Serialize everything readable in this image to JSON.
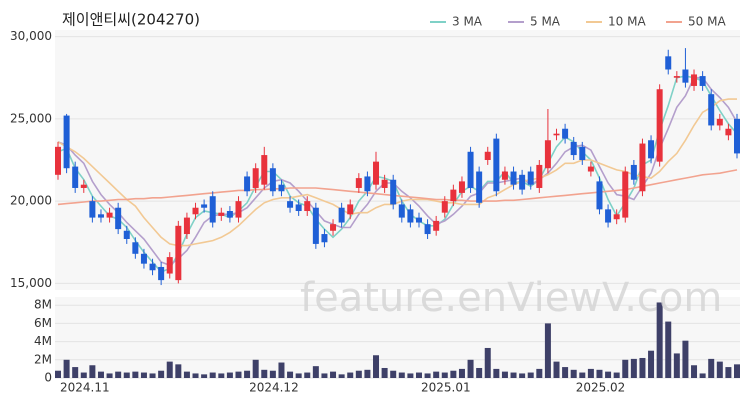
{
  "chart_data": [
    {
      "type": "candlestick",
      "title": "제이앤티씨(204270)",
      "watermark": "feature.enViewV.com",
      "categories": [
        "2024.11",
        null,
        null,
        null,
        null,
        null,
        null,
        null,
        null,
        null,
        null,
        null,
        null,
        null,
        null,
        null,
        null,
        null,
        null,
        null,
        null,
        null,
        "2024.12",
        null,
        null,
        null,
        null,
        null,
        null,
        null,
        null,
        null,
        null,
        null,
        null,
        null,
        null,
        null,
        null,
        null,
        null,
        null,
        "2025.01",
        null,
        null,
        null,
        null,
        null,
        null,
        null,
        null,
        null,
        null,
        null,
        null,
        null,
        null,
        null,
        null,
        null,
        "2025.02",
        null,
        null,
        null,
        null,
        null,
        null,
        null,
        null,
        null,
        null,
        null,
        null,
        null,
        null,
        null,
        null,
        null,
        null,
        null
      ],
      "open": [
        21600,
        25200,
        22100,
        20800,
        20000,
        19200,
        19000,
        19600,
        18200,
        17500,
        16800,
        16200,
        16000,
        15600,
        15200,
        18000,
        19200,
        19800,
        20300,
        19100,
        19400,
        19000,
        21500,
        20800,
        21000,
        22000,
        21000,
        20000,
        19800,
        19400,
        19600,
        18000,
        18200,
        19600,
        19200,
        20800,
        21500,
        21000,
        20800,
        21300,
        19800,
        19500,
        19000,
        18600,
        18200,
        19300,
        20000,
        20500,
        23000,
        21800,
        22500,
        23800,
        21300,
        21800,
        21600,
        21800,
        20800,
        22000,
        24000,
        24400,
        23600,
        23300,
        21800,
        21200,
        19500,
        18900,
        19000,
        22200,
        20600,
        23700,
        22400,
        28800,
        27500,
        28000,
        27000,
        27600,
        26500,
        24600,
        24000,
        25000
      ],
      "high": [
        23600,
        25300,
        22400,
        21300,
        20300,
        19500,
        19600,
        19900,
        18500,
        17800,
        17100,
        16500,
        16300,
        16900,
        18800,
        19300,
        19900,
        20100,
        20600,
        19600,
        19700,
        20300,
        21800,
        22300,
        23300,
        22300,
        21300,
        20300,
        20100,
        20300,
        19900,
        18300,
        18900,
        19900,
        20100,
        21700,
        21800,
        23000,
        21600,
        21600,
        20100,
        19800,
        19300,
        18900,
        19100,
        20300,
        21000,
        21500,
        23300,
        22100,
        23300,
        24100,
        22100,
        22100,
        21900,
        22100,
        22500,
        25600,
        24400,
        24700,
        23900,
        23600,
        22400,
        21500,
        19800,
        19500,
        22100,
        22500,
        23800,
        24000,
        27100,
        29200,
        27900,
        29300,
        28000,
        27900,
        26800,
        25300,
        24700,
        25300
      ],
      "low": [
        21300,
        21700,
        20500,
        20500,
        18700,
        18700,
        18700,
        18000,
        17400,
        16500,
        15900,
        15500,
        14900,
        15300,
        15000,
        17700,
        18900,
        19300,
        18400,
        18800,
        18700,
        18700,
        20300,
        20500,
        20700,
        20300,
        20300,
        19300,
        19100,
        19100,
        17100,
        17200,
        17900,
        18400,
        18900,
        20500,
        20300,
        20700,
        20500,
        19500,
        18700,
        18400,
        18400,
        17700,
        17900,
        19000,
        19700,
        20200,
        20500,
        19600,
        22200,
        20300,
        21000,
        20700,
        20400,
        20700,
        20500,
        21700,
        23700,
        23500,
        22500,
        22200,
        21500,
        19200,
        18400,
        18600,
        18700,
        21000,
        20300,
        22300,
        22100,
        27700,
        27200,
        26900,
        26700,
        26700,
        24300,
        24300,
        23700,
        22600
      ],
      "close": [
        23300,
        22000,
        20800,
        21000,
        19000,
        19000,
        19300,
        18300,
        17700,
        16800,
        16200,
        15800,
        15200,
        16600,
        18500,
        19000,
        19600,
        19600,
        18700,
        19300,
        19000,
        20000,
        20600,
        22000,
        22800,
        20600,
        20600,
        19600,
        19400,
        20000,
        17400,
        17500,
        18600,
        18700,
        19800,
        21400,
        20600,
        22400,
        21300,
        19800,
        19000,
        18700,
        18700,
        18000,
        18800,
        20000,
        20700,
        21200,
        20800,
        19900,
        23000,
        20600,
        21800,
        21000,
        20700,
        21000,
        22200,
        23700,
        24100,
        23800,
        22800,
        22500,
        22100,
        19500,
        18700,
        19200,
        21800,
        21300,
        23500,
        22600,
        26800,
        28000,
        27600,
        27200,
        27700,
        27000,
        24600,
        25000,
        24400,
        22900
      ],
      "up_color": "#e8323c",
      "down_color": "#1f5fd6",
      "series": [
        {
          "name": "3 MA",
          "color": "#7fd1c7",
          "values": [
            23000,
            23200,
            22000,
            21300,
            20300,
            19700,
            19100,
            18900,
            18400,
            17600,
            16900,
            16300,
            15700,
            15900,
            16800,
            18000,
            19000,
            19400,
            19300,
            19200,
            19000,
            19400,
            19900,
            20900,
            21800,
            21800,
            21300,
            20300,
            19900,
            19700,
            18900,
            18300,
            17800,
            18300,
            19000,
            20000,
            20600,
            21500,
            21400,
            21200,
            20000,
            19200,
            18800,
            18500,
            18500,
            18900,
            19800,
            20600,
            20900,
            20600,
            21200,
            21200,
            21800,
            21100,
            21200,
            20900,
            21300,
            22300,
            23300,
            23900,
            23600,
            23000,
            22500,
            21400,
            20100,
            19100,
            19900,
            20800,
            22200,
            22500,
            24300,
            25800,
            27500,
            27600,
            27500,
            27300,
            26400,
            25500,
            24700,
            24100
          ]
        },
        {
          "name": "5 MA",
          "color": "#b49fcc",
          "values": [
            23600,
            23400,
            22800,
            22300,
            21200,
            20400,
            19800,
            19300,
            18700,
            18200,
            17700,
            17000,
            16300,
            16100,
            16500,
            17000,
            17800,
            18700,
            19100,
            19200,
            19200,
            19300,
            19600,
            20200,
            20800,
            21200,
            21300,
            21100,
            20600,
            20000,
            19400,
            18800,
            18600,
            18400,
            18400,
            19200,
            19800,
            20600,
            21100,
            21100,
            20600,
            20200,
            19700,
            19100,
            18600,
            18800,
            19200,
            19700,
            20300,
            20500,
            21100,
            21100,
            21200,
            21300,
            21400,
            21000,
            21300,
            21700,
            22300,
            23000,
            23300,
            23400,
            23100,
            22100,
            21100,
            20400,
            20300,
            20100,
            20900,
            21700,
            23200,
            24400,
            25700,
            26400,
            27500,
            27500,
            26800,
            26300,
            25700,
            24800
          ]
        },
        {
          "name": "10 MA",
          "color": "#f2c994",
          "values": [
            23600,
            23300,
            23000,
            22600,
            22100,
            21600,
            21100,
            20600,
            20100,
            19700,
            19000,
            18400,
            17800,
            17400,
            17300,
            17300,
            17400,
            17500,
            17600,
            17800,
            18100,
            18500,
            19000,
            19500,
            19900,
            20100,
            20200,
            20200,
            20300,
            20400,
            20200,
            20000,
            19800,
            19500,
            19200,
            19300,
            19300,
            19600,
            19800,
            19800,
            20000,
            20100,
            20100,
            20100,
            20000,
            19900,
            19900,
            19800,
            19800,
            19800,
            20200,
            20400,
            20700,
            21000,
            21200,
            21300,
            21400,
            21600,
            21900,
            22300,
            22300,
            22500,
            22500,
            22300,
            22100,
            21900,
            21800,
            21600,
            21500,
            21400,
            21800,
            22400,
            22900,
            23700,
            24600,
            25400,
            25700,
            26100,
            26200,
            26200
          ]
        },
        {
          "name": "50 MA",
          "color": "#f2a38f",
          "values": [
            19800,
            19850,
            19900,
            19950,
            20000,
            20000,
            20050,
            20100,
            20100,
            20150,
            20150,
            20200,
            20200,
            20250,
            20300,
            20350,
            20400,
            20450,
            20500,
            20550,
            20600,
            20650,
            20650,
            20700,
            20700,
            20750,
            20750,
            20800,
            20800,
            20800,
            20800,
            20750,
            20700,
            20650,
            20600,
            20550,
            20500,
            20450,
            20400,
            20350,
            20300,
            20250,
            20200,
            20150,
            20100,
            20100,
            20050,
            20050,
            20000,
            20000,
            20000,
            20000,
            20050,
            20050,
            20100,
            20150,
            20200,
            20250,
            20300,
            20350,
            20400,
            20450,
            20500,
            20550,
            20600,
            20650,
            20700,
            20800,
            20900,
            21000,
            21100,
            21200,
            21300,
            21400,
            21500,
            21600,
            21650,
            21700,
            21800,
            21900
          ]
        }
      ],
      "ylim": [
        14600,
        30400
      ],
      "yticks": [
        {
          "value": 15000,
          "label": "15,000"
        },
        {
          "value": 20000,
          "label": "20,000"
        },
        {
          "value": 25000,
          "label": "25,000"
        },
        {
          "value": 30000,
          "label": "30,000"
        }
      ],
      "grid": true
    },
    {
      "type": "bar",
      "color": "#3e4068",
      "values": [
        800000,
        2000000,
        1200000,
        600000,
        1400000,
        700000,
        500000,
        700000,
        600000,
        700000,
        600000,
        500000,
        800000,
        1800000,
        1500000,
        700000,
        500000,
        400000,
        600000,
        500000,
        600000,
        700000,
        800000,
        2000000,
        900000,
        800000,
        1700000,
        700000,
        500000,
        600000,
        1300000,
        500000,
        700000,
        400000,
        600000,
        800000,
        900000,
        2500000,
        1100000,
        800000,
        600000,
        500000,
        600000,
        500000,
        700000,
        600000,
        800000,
        1000000,
        2000000,
        1100000,
        3300000,
        1000000,
        700000,
        600000,
        500000,
        600000,
        1000000,
        6000000,
        1800000,
        1200000,
        900000,
        600000,
        1000000,
        900000,
        700000,
        600000,
        2000000,
        2100000,
        2200000,
        3000000,
        8300000,
        6200000,
        2700000,
        4100000,
        1400000,
        500000,
        2100000,
        1800000,
        1200000,
        1500000
      ],
      "ylim": [
        0,
        8900000
      ],
      "yticks": [
        0,
        {
          "value": 2000000,
          "label": "2M"
        },
        {
          "value": 4000000,
          "label": "4M"
        },
        {
          "value": 6000000,
          "label": "6M"
        },
        {
          "value": 8000000,
          "label": "8M"
        }
      ],
      "grid": true
    }
  ]
}
